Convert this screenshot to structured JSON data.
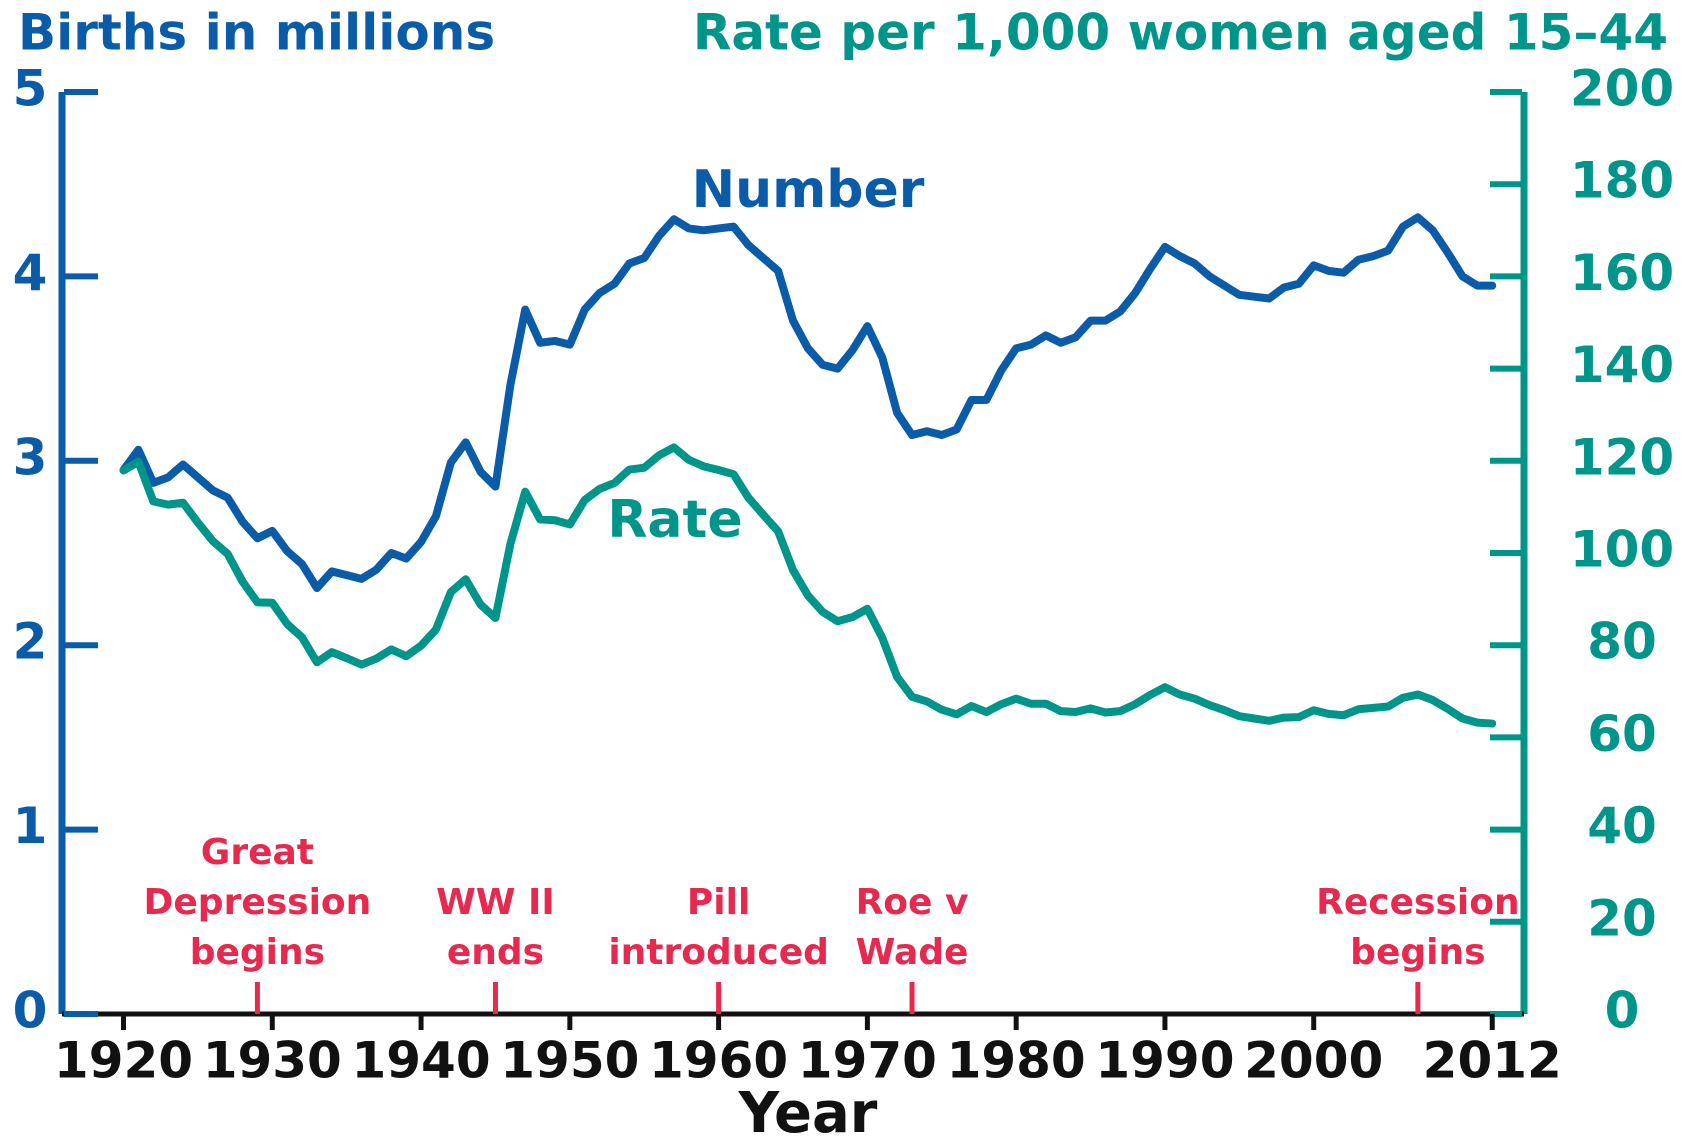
{
  "chart_data": {
    "type": "line",
    "ylabel": "Births in millions",
    "y2label": "Rate per 1,000 women aged 15–44",
    "xlabel": "Year",
    "x": [
      1920,
      1921,
      1922,
      1923,
      1924,
      1925,
      1926,
      1927,
      1928,
      1929,
      1930,
      1931,
      1932,
      1933,
      1934,
      1935,
      1936,
      1937,
      1938,
      1939,
      1940,
      1941,
      1942,
      1943,
      1944,
      1945,
      1946,
      1947,
      1948,
      1949,
      1950,
      1951,
      1952,
      1953,
      1954,
      1955,
      1956,
      1957,
      1958,
      1959,
      1960,
      1961,
      1962,
      1963,
      1964,
      1965,
      1966,
      1967,
      1968,
      1969,
      1970,
      1971,
      1972,
      1973,
      1974,
      1975,
      1976,
      1977,
      1978,
      1979,
      1980,
      1981,
      1982,
      1983,
      1984,
      1985,
      1986,
      1987,
      1988,
      1989,
      1990,
      1991,
      1992,
      1993,
      1994,
      1995,
      1996,
      1997,
      1998,
      1999,
      2000,
      2001,
      2002,
      2003,
      2004,
      2005,
      2006,
      2007,
      2008,
      2009,
      2010,
      2011,
      2012
    ],
    "series": [
      {
        "name": "Number",
        "color": "#0a5ca8",
        "values": [
          2.95,
          3.06,
          2.88,
          2.91,
          2.98,
          2.91,
          2.84,
          2.8,
          2.67,
          2.58,
          2.62,
          2.51,
          2.44,
          2.31,
          2.4,
          2.38,
          2.36,
          2.41,
          2.5,
          2.47,
          2.56,
          2.7,
          2.99,
          3.1,
          2.94,
          2.86,
          3.41,
          3.82,
          3.64,
          3.65,
          3.63,
          3.82,
          3.91,
          3.96,
          4.07,
          4.1,
          4.22,
          4.31,
          4.26,
          4.25,
          4.26,
          4.27,
          4.17,
          4.1,
          4.03,
          3.76,
          3.61,
          3.52,
          3.5,
          3.6,
          3.73,
          3.56,
          3.26,
          3.14,
          3.16,
          3.14,
          3.17,
          3.33,
          3.33,
          3.49,
          3.61,
          3.63,
          3.68,
          3.64,
          3.67,
          3.76,
          3.76,
          3.81,
          3.91,
          4.04,
          4.16,
          4.11,
          4.07,
          4.0,
          3.95,
          3.9,
          3.89,
          3.88,
          3.94,
          3.96,
          4.06,
          4.03,
          4.02,
          4.09,
          4.11,
          4.14,
          4.27,
          4.32,
          4.25,
          4.13,
          4.0,
          3.95,
          3.95
        ]
      },
      {
        "name": "Rate",
        "color": "#00958a",
        "axis": "y2",
        "values": [
          117.9,
          119.8,
          111.2,
          110.5,
          110.9,
          106.6,
          102.6,
          99.8,
          93.8,
          89.3,
          89.2,
          84.6,
          81.7,
          76.3,
          78.5,
          77.2,
          75.8,
          77.1,
          79.1,
          77.6,
          79.9,
          83.4,
          91.5,
          94.3,
          88.8,
          85.9,
          101.9,
          113.3,
          107.3,
          107.1,
          106.2,
          111.5,
          113.9,
          115.2,
          118.1,
          118.5,
          121.2,
          122.9,
          120.2,
          118.8,
          118.0,
          117.1,
          112.0,
          108.3,
          104.7,
          96.3,
          90.8,
          87.2,
          85.2,
          86.1,
          87.9,
          81.6,
          73.1,
          68.8,
          67.8,
          66.0,
          65.0,
          66.8,
          65.5,
          67.2,
          68.4,
          67.3,
          67.3,
          65.7,
          65.5,
          66.3,
          65.4,
          65.7,
          67.2,
          69.2,
          70.9,
          69.3,
          68.4,
          67.0,
          65.9,
          64.6,
          64.1,
          63.6,
          64.3,
          64.4,
          65.9,
          65.1,
          64.8,
          66.1,
          66.4,
          66.7,
          68.6,
          69.3,
          68.1,
          66.2,
          64.1,
          63.2,
          63.0
        ]
      }
    ],
    "xlim": [
      1916,
      2014
    ],
    "xticks": [
      1920,
      1930,
      1940,
      1950,
      1960,
      1970,
      1980,
      1990,
      2000,
      2012
    ],
    "ylim": [
      0,
      5
    ],
    "yticks": [
      0,
      1,
      2,
      3,
      4,
      5
    ],
    "y2lim": [
      0,
      200
    ],
    "y2ticks": [
      0,
      20,
      40,
      60,
      80,
      100,
      120,
      140,
      160,
      180,
      200
    ],
    "annotations": [
      {
        "x": 1929,
        "text": [
          "Great",
          "Depression",
          "begins"
        ]
      },
      {
        "x": 1945,
        "text": [
          "WW II",
          "ends"
        ]
      },
      {
        "x": 1960,
        "text": [
          "Pill",
          "introduced"
        ]
      },
      {
        "x": 1973,
        "text": [
          "Roe v",
          "Wade"
        ]
      },
      {
        "x": 2007,
        "text": [
          "Recession",
          "begins"
        ]
      }
    ],
    "annotation_color": "#e8294f"
  }
}
